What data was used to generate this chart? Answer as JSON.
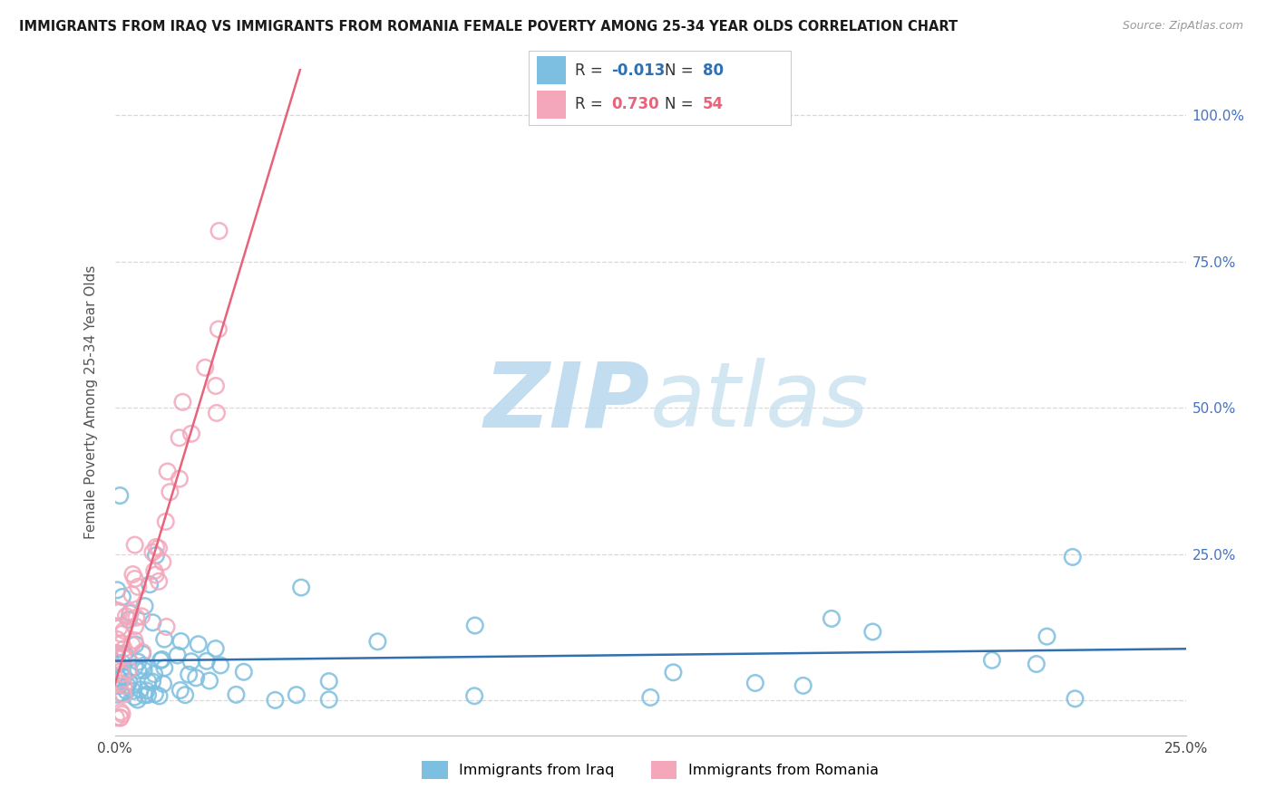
{
  "title": "IMMIGRANTS FROM IRAQ VS IMMIGRANTS FROM ROMANIA FEMALE POVERTY AMONG 25-34 YEAR OLDS CORRELATION CHART",
  "source": "Source: ZipAtlas.com",
  "ylabel": "Female Poverty Among 25-34 Year Olds",
  "xlim": [
    0.0,
    0.25
  ],
  "ylim": [
    -0.06,
    1.08
  ],
  "iraq_color": "#7dbfe0",
  "romania_color": "#f4a7bb",
  "iraq_line_color": "#3070b0",
  "romania_line_color": "#e8637a",
  "iraq_R": -0.013,
  "iraq_N": 80,
  "romania_R": 0.73,
  "romania_N": 54,
  "watermark_zip": "ZIP",
  "watermark_atlas": "atlas",
  "watermark_color": "#cce5f5",
  "background_color": "#ffffff",
  "grid_color": "#d8d8d8",
  "yticks": [
    0.0,
    0.25,
    0.5,
    0.75,
    1.0
  ],
  "right_ytick_labels": [
    "",
    "25.0%",
    "50.0%",
    "75.0%",
    "100.0%"
  ],
  "left_ytick_labels": [
    "",
    "",
    "",
    "",
    ""
  ],
  "xtick_labels": [
    "0.0%",
    "25.0%"
  ],
  "legend_iraq_label": "Immigrants from Iraq",
  "legend_romania_label": "Immigrants from Romania"
}
